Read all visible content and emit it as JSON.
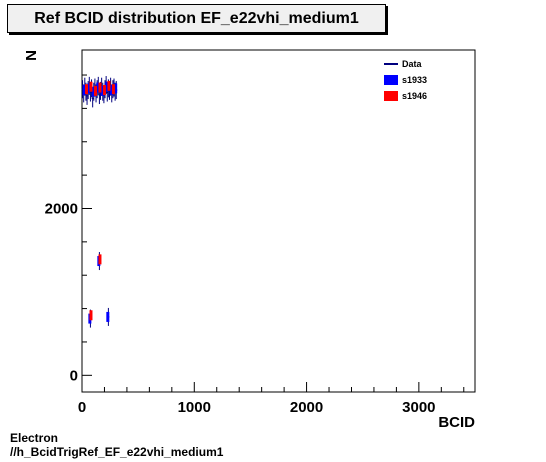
{
  "page": {
    "title": "Ref BCID distribution EF_e22vhi_medium1",
    "footer_line1": "Electron",
    "footer_line2": "//h_BcidTrigRef_EF_e22vhi_medium1"
  },
  "colors": {
    "data": "#00007f",
    "s1933": "#0000ff",
    "s1946": "#ff0000"
  },
  "chart_data": {
    "type": "scatter",
    "title": "Ref BCID distribution EF_e22vhi_medium1",
    "xlabel": "BCID",
    "ylabel": "N",
    "xlim": [
      0,
      3500
    ],
    "ylim": [
      -200,
      3900
    ],
    "x_major_ticks": [
      0,
      1000,
      2000,
      3000
    ],
    "x_tick_labels": [
      "0",
      "1000",
      "2000",
      "3000"
    ],
    "y_major_ticks": [
      0,
      2000
    ],
    "y_tick_labels": [
      "0",
      "2000"
    ],
    "legend": {
      "placement": "top-right",
      "entries": [
        {
          "name": "Data",
          "style": "line"
        },
        {
          "name": "s1933",
          "style": "box"
        },
        {
          "name": "s1946",
          "style": "box"
        }
      ]
    },
    "series": [
      {
        "name": "Data",
        "points": [
          {
            "x": 5,
            "y": 3430
          },
          {
            "x": 15,
            "y": 3380
          },
          {
            "x": 25,
            "y": 3460
          },
          {
            "x": 35,
            "y": 3400
          },
          {
            "x": 45,
            "y": 3350
          },
          {
            "x": 55,
            "y": 3420
          },
          {
            "x": 65,
            "y": 3470
          },
          {
            "x": 75,
            "y": 3390
          },
          {
            "x": 85,
            "y": 3440
          },
          {
            "x": 95,
            "y": 3320
          },
          {
            "x": 105,
            "y": 3400
          },
          {
            "x": 115,
            "y": 3450
          },
          {
            "x": 125,
            "y": 3380
          },
          {
            "x": 135,
            "y": 3430
          },
          {
            "x": 145,
            "y": 3470
          },
          {
            "x": 155,
            "y": 3360
          },
          {
            "x": 165,
            "y": 3410
          },
          {
            "x": 175,
            "y": 3460
          },
          {
            "x": 185,
            "y": 3400
          },
          {
            "x": 195,
            "y": 3370
          },
          {
            "x": 205,
            "y": 3430
          },
          {
            "x": 215,
            "y": 3480
          },
          {
            "x": 225,
            "y": 3390
          },
          {
            "x": 235,
            "y": 3440
          },
          {
            "x": 245,
            "y": 3410
          },
          {
            "x": 255,
            "y": 3460
          },
          {
            "x": 265,
            "y": 3380
          },
          {
            "x": 275,
            "y": 3430
          },
          {
            "x": 285,
            "y": 3450
          },
          {
            "x": 295,
            "y": 3400
          },
          {
            "x": 305,
            "y": 3420
          },
          {
            "x": 75,
            "y": 680
          },
          {
            "x": 155,
            "y": 1370
          },
          {
            "x": 235,
            "y": 700
          }
        ]
      },
      {
        "name": "s1933",
        "points": [
          {
            "x": 20,
            "y": 3420
          },
          {
            "x": 60,
            "y": 3440
          },
          {
            "x": 100,
            "y": 3400
          },
          {
            "x": 140,
            "y": 3450
          },
          {
            "x": 180,
            "y": 3410
          },
          {
            "x": 220,
            "y": 3460
          },
          {
            "x": 260,
            "y": 3420
          },
          {
            "x": 300,
            "y": 3440
          },
          {
            "x": 70,
            "y": 680
          },
          {
            "x": 150,
            "y": 1370
          },
          {
            "x": 230,
            "y": 700
          }
        ]
      },
      {
        "name": "s1946",
        "points": [
          {
            "x": 40,
            "y": 3430
          },
          {
            "x": 80,
            "y": 3460
          },
          {
            "x": 120,
            "y": 3410
          },
          {
            "x": 160,
            "y": 3450
          },
          {
            "x": 200,
            "y": 3420
          },
          {
            "x": 240,
            "y": 3470
          },
          {
            "x": 280,
            "y": 3430
          },
          {
            "x": 80,
            "y": 720
          },
          {
            "x": 160,
            "y": 1390
          }
        ]
      }
    ]
  }
}
